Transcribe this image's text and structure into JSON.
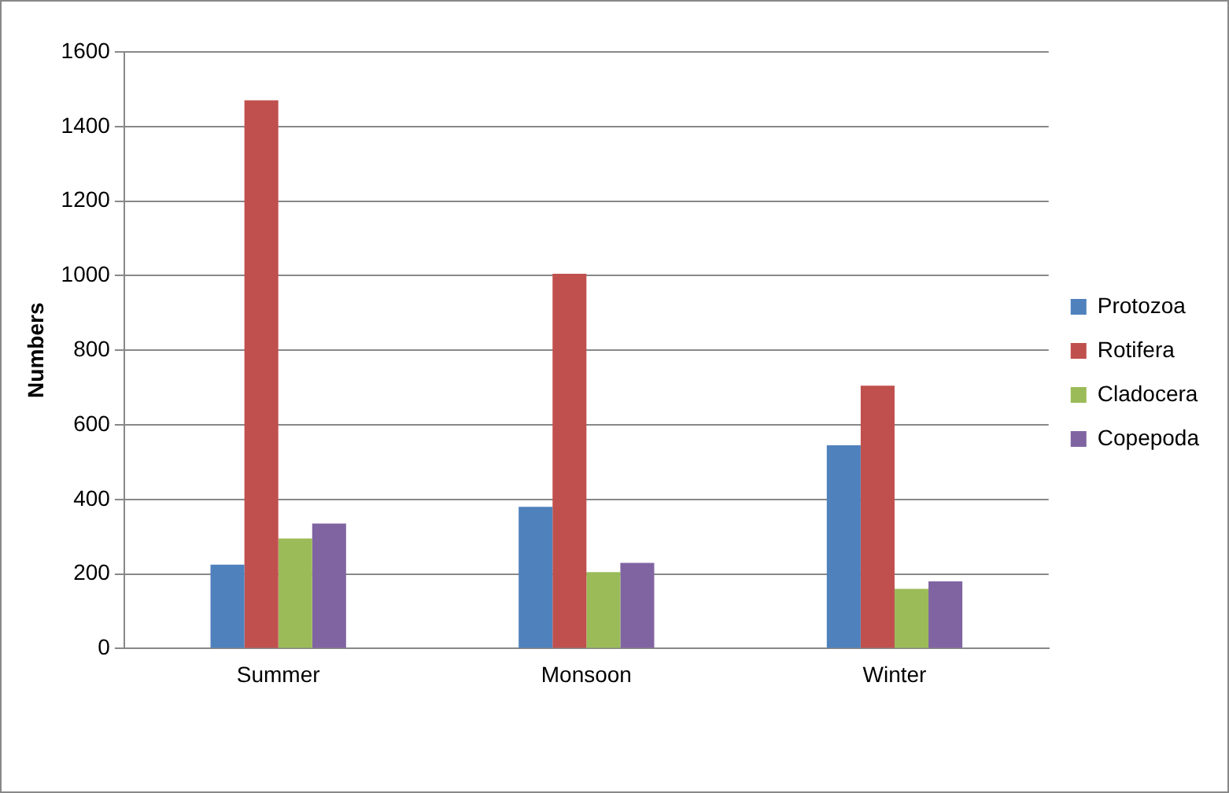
{
  "chart_data": {
    "type": "bar",
    "ylabel": "Numbers",
    "categories": [
      "Summer",
      "Monsoon",
      "Winter"
    ],
    "series": [
      {
        "name": "Protozoa",
        "color": "#4f81bd",
        "values": [
          225,
          380,
          545
        ]
      },
      {
        "name": "Rotifera",
        "color": "#c0504d",
        "values": [
          1470,
          1005,
          705
        ]
      },
      {
        "name": "Cladocera",
        "color": "#9bbb59",
        "values": [
          295,
          205,
          160
        ]
      },
      {
        "name": "Copepoda",
        "color": "#8064a2",
        "values": [
          335,
          230,
          180
        ]
      }
    ],
    "ylim": [
      0,
      1600
    ],
    "yticks": [
      0,
      200,
      400,
      600,
      800,
      1000,
      1200,
      1400,
      1600
    ],
    "grid": "y",
    "legend": "right"
  }
}
